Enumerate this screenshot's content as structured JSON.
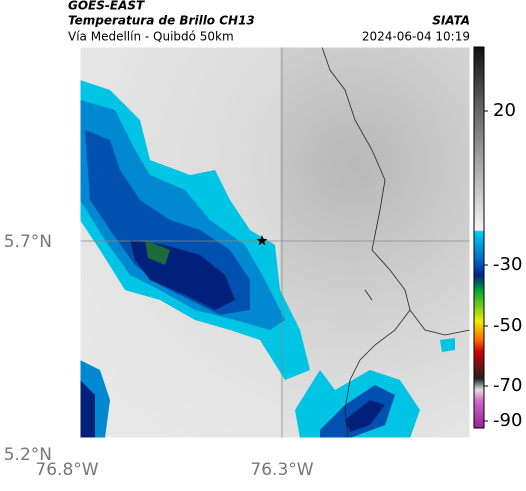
{
  "header": {
    "source": "GOES-EAST",
    "product": "Temperatura de Brillo CH13",
    "institution": "SIATA",
    "region": "Vía Medellín - Quibdó 50km",
    "datetime": "2024-06-04 10:19"
  },
  "map": {
    "y_labels": [
      "5.7°N",
      "5.2°N"
    ],
    "x_labels": [
      "76.8°W",
      "76.3°W"
    ]
  },
  "colorbar": {
    "ticks": [
      20,
      -30,
      -50,
      -70,
      -90
    ]
  }
}
